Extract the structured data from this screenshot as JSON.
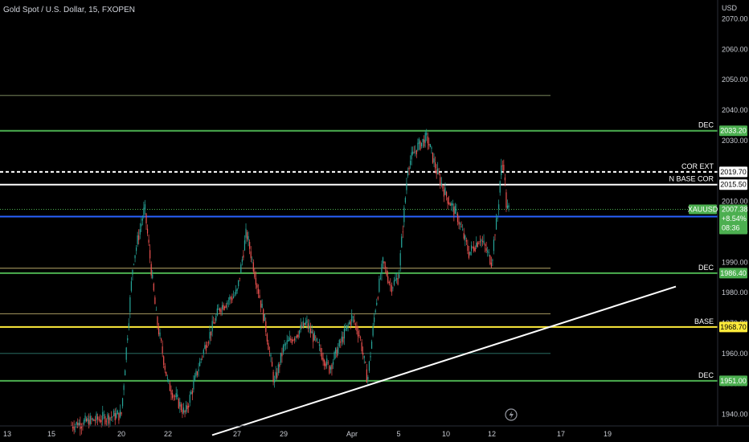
{
  "header": {
    "symbol_title": "Gold Spot / U.S. Dollar, 15, FXOPEN",
    "currency": "USD"
  },
  "colors": {
    "background": "#000000",
    "up": "#26a69a",
    "down": "#ef5350",
    "green": "#4caf50",
    "yellow": "#ffeb3b",
    "blue": "#2962ff",
    "white": "#ffffff",
    "thin_olive": "#8b9a6b",
    "thin_teal": "#2e7d6f",
    "thin_yellow": "#d4c27a"
  },
  "icons": {
    "chart_replay": "lightning-bolt-icon"
  },
  "chart_data": {
    "type": "candlestick",
    "title": "Gold Spot / U.S. Dollar, 15, FXOPEN",
    "y_axis": {
      "unit": "USD",
      "ylim": [
        1936,
        2075
      ],
      "ticks": [
        1940.0,
        1950.0,
        1960.0,
        1970.0,
        1980.0,
        1990.0,
        2000.0,
        2010.0,
        2020.0,
        2030.0,
        2040.0,
        2050.0,
        2060.0,
        2070.0
      ],
      "tick_labels": [
        "1940.00",
        "1950.00",
        "1960.00",
        "1970.00",
        "1980.00",
        "1990.00",
        "2000.00",
        "2010.00",
        "2020.00",
        "2030.00",
        "2040.00",
        "2050.00",
        "2060.00",
        "2070.00"
      ]
    },
    "x_axis": {
      "tick_labels": [
        "13",
        "15",
        "20",
        "22",
        "27",
        "29",
        "Apr",
        "5",
        "10",
        "12",
        "17",
        "19"
      ]
    },
    "price_path": [
      {
        "x": "13",
        "y": 1934
      },
      {
        "x": "15",
        "y": 1935
      },
      {
        "x": "20",
        "y": 1940
      },
      {
        "x": "20",
        "y": 1990
      },
      {
        "x": "20",
        "y": 2008
      },
      {
        "x": "20",
        "y": 1972
      },
      {
        "x": "22",
        "y": 1950
      },
      {
        "x": "22",
        "y": 1940
      },
      {
        "x": "22",
        "y": 1960
      },
      {
        "x": "22",
        "y": 1975
      },
      {
        "x": "27",
        "y": 1980
      },
      {
        "x": "27",
        "y": 2000
      },
      {
        "x": "27",
        "y": 1985
      },
      {
        "x": "27",
        "y": 1970
      },
      {
        "x": "27",
        "y": 1950
      },
      {
        "x": "29",
        "y": 1962
      },
      {
        "x": "29",
        "y": 1970
      },
      {
        "x": "29",
        "y": 1955
      },
      {
        "x": "Apr",
        "y": 1972
      },
      {
        "x": "Apr",
        "y": 1966
      },
      {
        "x": "Apr",
        "y": 1951
      },
      {
        "x": "Apr",
        "y": 1975
      },
      {
        "x": "Apr",
        "y": 1990
      },
      {
        "x": "Apr",
        "y": 1982
      },
      {
        "x": "5",
        "y": 1985
      },
      {
        "x": "5",
        "y": 2022
      },
      {
        "x": "5",
        "y": 2028
      },
      {
        "x": "5",
        "y": 2031
      },
      {
        "x": "5",
        "y": 2020
      },
      {
        "x": "10",
        "y": 2012
      },
      {
        "x": "10",
        "y": 2005
      },
      {
        "x": "10",
        "y": 1993
      },
      {
        "x": "10",
        "y": 1998
      },
      {
        "x": "12",
        "y": 1990
      },
      {
        "x": "12",
        "y": 2000
      },
      {
        "x": "12",
        "y": 2005
      },
      {
        "x": "12",
        "y": 2020
      },
      {
        "x": "12",
        "y": 2023
      },
      {
        "x": "12",
        "y": 2007.38
      }
    ],
    "current_price": 2007.38,
    "levels": [
      {
        "price": 2044.8,
        "label": "",
        "color": "#8b9a6b",
        "style": "thin"
      },
      {
        "price": 2033.2,
        "label": "DEC",
        "color": "#4caf50",
        "style": "solid",
        "badge": "2033.20",
        "badge_bg": "#4caf50",
        "badge_fg": "#ffffff"
      },
      {
        "price": 2019.7,
        "label": "COR EXT",
        "color": "#ffffff",
        "style": "dashed",
        "badge": "2019.70",
        "badge_bg": "#ffffff",
        "badge_fg": "#000000"
      },
      {
        "price": 2015.5,
        "label": "N BASE COR",
        "color": "#ffffff",
        "style": "solid",
        "badge": "2015.50",
        "badge_bg": "#ffffff",
        "badge_fg": "#000000"
      },
      {
        "price": 2005.0,
        "label": "",
        "color": "#2962ff",
        "style": "solid",
        "badge": "2005.00",
        "badge_bg": "#2962ff",
        "badge_fg": "#ffffff"
      },
      {
        "price": 1988.0,
        "label": "",
        "color": "#d4c27a",
        "style": "thin"
      },
      {
        "price": 1986.4,
        "label": "DEC",
        "color": "#4caf50",
        "style": "solid",
        "badge": "1986.40",
        "badge_bg": "#4caf50",
        "badge_fg": "#ffffff"
      },
      {
        "price": 1973.0,
        "label": "",
        "color": "#d4c27a",
        "style": "thin"
      },
      {
        "price": 1968.7,
        "label": "BASE",
        "color": "#ffeb3b",
        "style": "solid",
        "badge": "1968.70",
        "badge_bg": "#ffeb3b",
        "badge_fg": "#000000"
      },
      {
        "price": 1960.0,
        "label": "",
        "color": "#2e7d6f",
        "style": "thin"
      },
      {
        "price": 1951.0,
        "label": "DEC",
        "color": "#4caf50",
        "style": "solid",
        "badge": "1951.00",
        "badge_bg": "#4caf50",
        "badge_fg": "#ffffff"
      }
    ],
    "trendline": {
      "start": {
        "x": "27",
        "y": 1935
      },
      "end": {
        "x": "19",
        "y": 1982
      },
      "color": "#ffffff"
    },
    "price_badge": {
      "symbol": "XAUUSD",
      "price": "2007.38",
      "change": "+8.54%",
      "countdown": "08:36",
      "bg": "#4caf50"
    }
  }
}
